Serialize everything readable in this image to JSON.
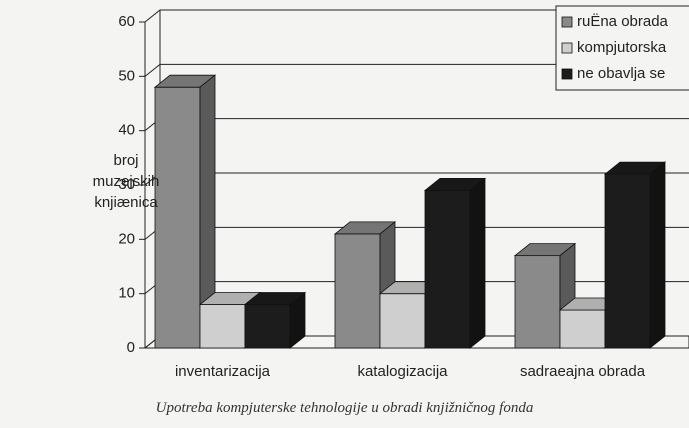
{
  "chart_data": {
    "type": "bar3d",
    "y_label": "broj muzejskih knjiænica",
    "caption": "Upotreba kompjuterske tehnologije u obradi knjižničnog fonda",
    "categories": [
      "inventarizacija",
      "katalogizacija",
      "sadraeajna obrada"
    ],
    "series": [
      {
        "name": "ruËna obrada",
        "color": "#8a8a8a",
        "values": [
          48,
          21,
          17
        ]
      },
      {
        "name": "kompjutorska",
        "color": "#cfcfcf",
        "values": [
          8,
          10,
          7
        ]
      },
      {
        "name": "ne obavlja se",
        "color": "#1c1c1c",
        "values": [
          8,
          29,
          32
        ]
      }
    ],
    "ylim": [
      0,
      60
    ],
    "yticks": [
      0,
      10,
      20,
      30,
      40,
      50,
      60
    ],
    "grid": true,
    "legend": "top-right"
  }
}
